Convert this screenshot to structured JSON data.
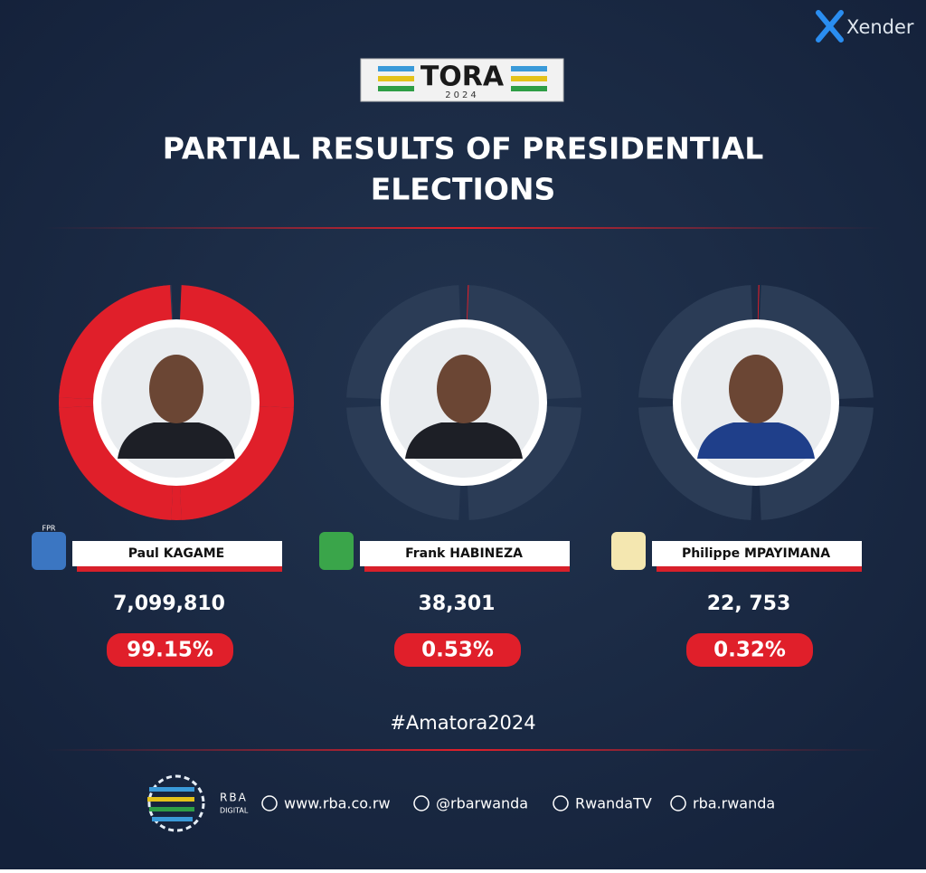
{
  "watermark": "Xender",
  "header": {
    "logo_title": "TORA",
    "logo_year": "2024",
    "title_line1": "PARTIAL RESULTS OF PRESIDENTIAL",
    "title_line2": "ELECTIONS"
  },
  "candidates": [
    {
      "name": "Paul KAGAME",
      "party": "FPR",
      "votes": "7,099,810",
      "percent": 99.15,
      "percent_label": "99.15%"
    },
    {
      "name": "Frank HABINEZA",
      "votes": "38,301",
      "percent": 0.53,
      "percent_label": "0.53%"
    },
    {
      "name": "Philippe MPAYIMANA",
      "votes": "22, 753",
      "percent": 0.32,
      "percent_label": "0.32%"
    }
  ],
  "hashtag": "#Amatora2024",
  "footer": {
    "brand": "RBA",
    "brand_sub": "DIGITAL",
    "links": [
      "www.rba.co.rw",
      "@rbarwanda",
      "RwandaTV",
      "rba.rwanda"
    ]
  }
}
